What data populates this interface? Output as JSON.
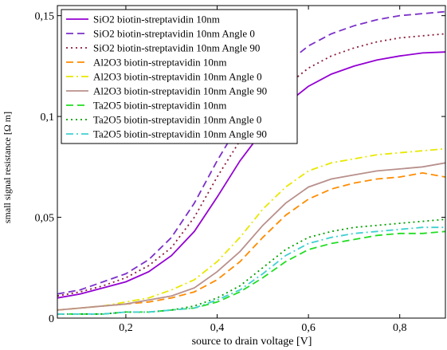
{
  "chart_data": {
    "type": "line",
    "title": "",
    "xlabel": "source to drain voltage [V]",
    "ylabel": "small signal resistance [Ω m]",
    "xlim": [
      0.05,
      0.9
    ],
    "ylim": [
      0,
      0.155
    ],
    "x_ticks": [
      0.2,
      0.4,
      0.6,
      0.8
    ],
    "x_tick_labels": [
      "0,2",
      "0,4",
      "0,6",
      "0,8"
    ],
    "y_ticks": [
      0,
      0.05,
      0.1,
      0.15
    ],
    "y_tick_labels": [
      "0",
      "0,05",
      "0,1",
      "0,15"
    ],
    "grid": false,
    "legend_position": "top-left",
    "x": [
      0.05,
      0.1,
      0.15,
      0.2,
      0.25,
      0.3,
      0.35,
      0.4,
      0.45,
      0.5,
      0.55,
      0.6,
      0.65,
      0.7,
      0.75,
      0.8,
      0.85,
      0.9
    ],
    "series": [
      {
        "name": "SiO2 biotin-streptavidin 10nm",
        "color": "#9400d3",
        "dash": "solid",
        "values": [
          0.01,
          0.012,
          0.015,
          0.018,
          0.023,
          0.031,
          0.043,
          0.06,
          0.078,
          0.093,
          0.106,
          0.115,
          0.121,
          0.125,
          0.128,
          0.13,
          0.1315,
          0.132
        ]
      },
      {
        "name": "SiO2 biotin-streptavidin 10nm Angle 0",
        "color": "#7b30c8",
        "dash": "dash",
        "values": [
          0.012,
          0.014,
          0.018,
          0.022,
          0.029,
          0.04,
          0.057,
          0.078,
          0.097,
          0.113,
          0.126,
          0.135,
          0.141,
          0.145,
          0.148,
          0.15,
          0.151,
          0.152
        ]
      },
      {
        "name": "SiO2 biotin-streptavidin 10nm Angle 90",
        "color": "#8b1a3a",
        "dash": "dot",
        "values": [
          0.011,
          0.013,
          0.016,
          0.02,
          0.026,
          0.035,
          0.05,
          0.07,
          0.088,
          0.103,
          0.115,
          0.124,
          0.13,
          0.134,
          0.137,
          0.139,
          0.14,
          0.141
        ]
      },
      {
        "name": "Al2O3 biotin-streptavidin 10nm",
        "color": "#ff8c00",
        "dash": "dash",
        "values": [
          0.004,
          0.005,
          0.006,
          0.007,
          0.008,
          0.01,
          0.013,
          0.019,
          0.028,
          0.04,
          0.051,
          0.059,
          0.064,
          0.067,
          0.069,
          0.07,
          0.072,
          0.07
        ]
      },
      {
        "name": "Al2O3 biotin-streptavidin 10nm Angle 0",
        "color": "#e8e800",
        "dash": "dashdot",
        "values": [
          0.004,
          0.005,
          0.006,
          0.008,
          0.01,
          0.014,
          0.019,
          0.028,
          0.04,
          0.054,
          0.065,
          0.073,
          0.077,
          0.079,
          0.081,
          0.082,
          0.083,
          0.084
        ]
      },
      {
        "name": "Al2O3 biotin-streptavidin 10nm Angle 90",
        "color": "#b8908c",
        "dash": "solid",
        "values": [
          0.004,
          0.005,
          0.006,
          0.007,
          0.009,
          0.011,
          0.015,
          0.023,
          0.033,
          0.046,
          0.057,
          0.065,
          0.069,
          0.071,
          0.073,
          0.074,
          0.075,
          0.077
        ]
      },
      {
        "name": "Ta2O5 biotin-streptavidin 10nm",
        "color": "#22dd22",
        "dash": "dash",
        "values": [
          0.002,
          0.002,
          0.002,
          0.003,
          0.003,
          0.004,
          0.005,
          0.008,
          0.013,
          0.02,
          0.028,
          0.034,
          0.037,
          0.039,
          0.041,
          0.042,
          0.042,
          0.043
        ]
      },
      {
        "name": "Ta2O5 biotin-streptavidin 10nm Angle 0",
        "color": "#00a000",
        "dash": "dot",
        "values": [
          0.002,
          0.002,
          0.002,
          0.003,
          0.003,
          0.004,
          0.006,
          0.01,
          0.016,
          0.025,
          0.034,
          0.04,
          0.043,
          0.045,
          0.046,
          0.047,
          0.048,
          0.049
        ]
      },
      {
        "name": "Ta2O5 biotin-streptavidin 10nm Angle 90",
        "color": "#40d0d0",
        "dash": "dashdot",
        "values": [
          0.002,
          0.002,
          0.002,
          0.003,
          0.003,
          0.004,
          0.005,
          0.009,
          0.014,
          0.022,
          0.031,
          0.037,
          0.04,
          0.042,
          0.043,
          0.044,
          0.045,
          0.045
        ]
      }
    ]
  }
}
